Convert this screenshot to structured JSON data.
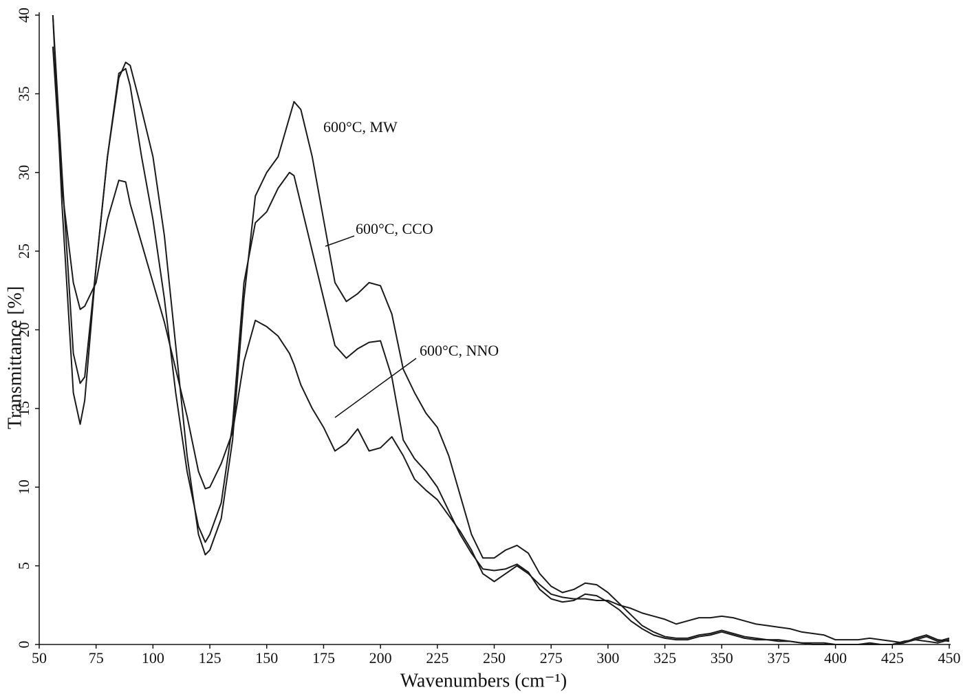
{
  "chart_data": {
    "type": "line",
    "x_label": "Wavenumbers (cm⁻¹)",
    "y_label": "Transmittance [%]",
    "x": [
      56,
      60,
      65,
      68,
      70,
      75,
      80,
      85,
      88,
      90,
      95,
      100,
      105,
      110,
      115,
      120,
      123,
      125,
      130,
      135,
      140,
      145,
      150,
      155,
      160,
      162,
      165,
      170,
      175,
      180,
      185,
      190,
      195,
      200,
      205,
      210,
      215,
      220,
      225,
      230,
      235,
      240,
      245,
      250,
      255,
      260,
      265,
      270,
      275,
      280,
      285,
      290,
      295,
      300,
      305,
      310,
      315,
      320,
      325,
      330,
      335,
      340,
      345,
      350,
      355,
      360,
      365,
      370,
      375,
      380,
      385,
      390,
      395,
      400,
      405,
      410,
      415,
      420,
      425,
      430,
      435,
      440,
      445,
      450
    ],
    "series": [
      {
        "name": "600°C, MW",
        "color": "#1a1a1a",
        "values": [
          40,
          28,
          16,
          14,
          15.5,
          24,
          31,
          36,
          37,
          36.8,
          34,
          31,
          26,
          19,
          12,
          7,
          5.7,
          6,
          8,
          13,
          22,
          28.5,
          30,
          31,
          33.5,
          34.5,
          34,
          31,
          27,
          23,
          21.8,
          22.3,
          23,
          22.8,
          21,
          17.5,
          16,
          14.7,
          13.8,
          12,
          9.5,
          7,
          5.5,
          5.5,
          6,
          6.3,
          5.8,
          4.5,
          3.7,
          3.3,
          3.5,
          3.9,
          3.8,
          3.3,
          2.6,
          1.9,
          1.2,
          0.8,
          0.5,
          0.4,
          0.4,
          0.6,
          0.7,
          0.9,
          0.7,
          0.5,
          0.4,
          0.3,
          0.3,
          0.2,
          0.1,
          0.1,
          0.1,
          0,
          0,
          0,
          0.1,
          0,
          0,
          0.2,
          0.3,
          0.5,
          0.2,
          0.4
        ]
      },
      {
        "name": "600°C, CCO",
        "color": "#1a1a1a",
        "values": [
          40,
          30,
          18.5,
          16.6,
          17,
          24,
          31,
          36.3,
          36.6,
          35.5,
          31,
          27,
          22,
          16,
          11,
          7.5,
          6.5,
          7,
          9,
          14,
          23,
          26.8,
          27.5,
          29,
          30,
          29.8,
          28,
          25,
          22,
          19,
          18.2,
          18.8,
          19.2,
          19.3,
          17,
          13,
          11.8,
          11,
          10,
          8.5,
          7,
          5.8,
          4.8,
          4.7,
          4.8,
          5.1,
          4.6,
          3.5,
          2.9,
          2.7,
          2.8,
          3.2,
          3.1,
          2.7,
          2.2,
          1.5,
          1,
          0.6,
          0.4,
          0.3,
          0.3,
          0.5,
          0.6,
          0.8,
          0.6,
          0.4,
          0.3,
          0.3,
          0.2,
          0.2,
          0.1,
          0,
          0,
          0,
          0,
          0,
          0,
          0,
          0,
          0.1,
          0.3,
          0.2,
          0.1,
          0.3
        ]
      },
      {
        "name": "600°C, NNO",
        "color": "#1a1a1a",
        "values": [
          38,
          29,
          23,
          21.3,
          21.5,
          23,
          27,
          29.5,
          29.4,
          28,
          25.5,
          23,
          20.5,
          17.5,
          14.5,
          11,
          9.9,
          10,
          11.5,
          13.5,
          18,
          20.6,
          20.2,
          19.6,
          18.5,
          17.8,
          16.5,
          15,
          13.8,
          12.3,
          12.8,
          13.7,
          12.3,
          12.5,
          13.2,
          12,
          10.5,
          9.8,
          9.2,
          8.2,
          7.2,
          6,
          4.5,
          4,
          4.5,
          5,
          4.5,
          3.8,
          3.2,
          3,
          2.9,
          2.9,
          2.8,
          2.8,
          2.5,
          2.3,
          2,
          1.8,
          1.6,
          1.3,
          1.5,
          1.7,
          1.7,
          1.8,
          1.7,
          1.5,
          1.3,
          1.2,
          1.1,
          1,
          0.8,
          0.7,
          0.6,
          0.3,
          0.3,
          0.3,
          0.4,
          0.3,
          0.2,
          0.1,
          0.4,
          0.6,
          0.3,
          0.2
        ]
      }
    ],
    "xlim": [
      50,
      450
    ],
    "ylim": [
      0,
      40
    ],
    "xticks": [
      50,
      75,
      100,
      125,
      150,
      175,
      200,
      225,
      250,
      275,
      300,
      325,
      350,
      375,
      400,
      425,
      450
    ],
    "yticks": [
      0,
      5,
      10,
      15,
      20,
      25,
      30,
      35,
      40
    ],
    "grid": false
  }
}
